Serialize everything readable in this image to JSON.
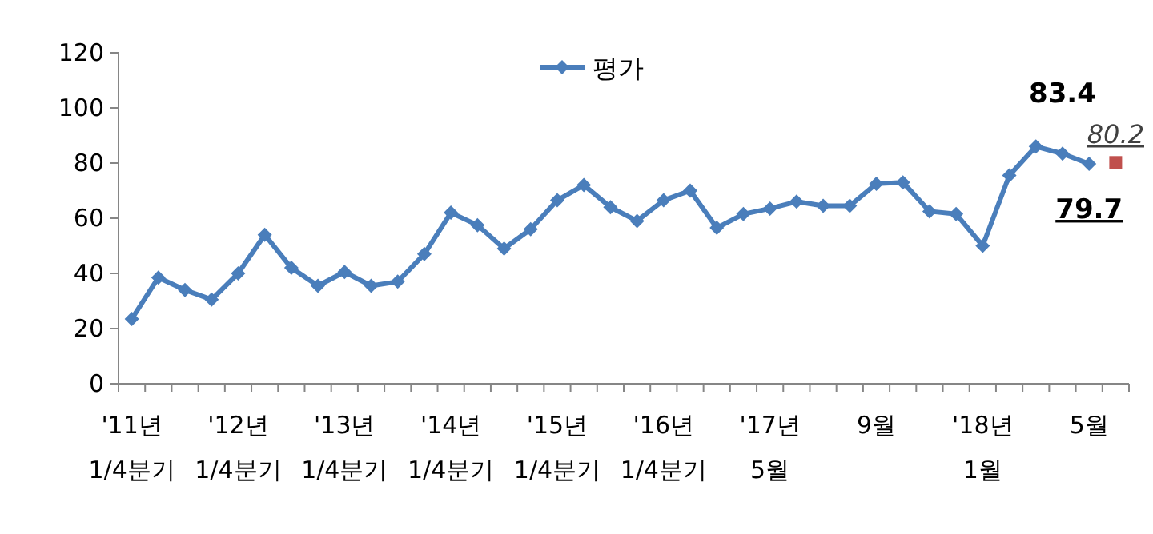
{
  "chart_data": {
    "type": "line",
    "categories": [
      "'11년\n1/4분기",
      null,
      null,
      null,
      "'12년\n1/4분기",
      null,
      null,
      null,
      "'13년\n1/4분기",
      null,
      null,
      null,
      "'14년\n1/4분기",
      null,
      null,
      null,
      "'15년\n1/4분기",
      null,
      null,
      null,
      "'16년\n1/4분기",
      null,
      null,
      null,
      "'17년\n5월",
      null,
      null,
      null,
      "9월",
      null,
      null,
      null,
      "'18년\n1월",
      null,
      null,
      null,
      "5월",
      null
    ],
    "series": [
      {
        "name": "평가",
        "color": "#4a7ebb",
        "marker": "diamond",
        "values": [
          23.5,
          38.5,
          34,
          30.5,
          40,
          54,
          42,
          35.5,
          40.5,
          35.5,
          37,
          47,
          62,
          57.5,
          49,
          56,
          66.5,
          72,
          64,
          59,
          66.5,
          70,
          56.5,
          61.5,
          63.5,
          66,
          64.5,
          64.5,
          72.5,
          73,
          62.5,
          61.5,
          50,
          75.5,
          86,
          83.4,
          79.7,
          null
        ],
        "value_labels": [
          null,
          null,
          null,
          null,
          null,
          null,
          null,
          null,
          null,
          null,
          null,
          null,
          null,
          null,
          null,
          null,
          null,
          null,
          null,
          null,
          null,
          null,
          null,
          null,
          null,
          null,
          null,
          null,
          null,
          null,
          null,
          null,
          null,
          null,
          null,
          "83.4",
          "79.7",
          null
        ]
      },
      {
        "type": "scatter",
        "color": "#c0504d",
        "marker": "square",
        "values": [
          null,
          null,
          null,
          null,
          null,
          null,
          null,
          null,
          null,
          null,
          null,
          null,
          null,
          null,
          null,
          null,
          null,
          null,
          null,
          null,
          null,
          null,
          null,
          null,
          null,
          null,
          null,
          null,
          null,
          null,
          null,
          null,
          null,
          null,
          null,
          null,
          null,
          80.2
        ],
        "value_labels": [
          null,
          null,
          null,
          null,
          null,
          null,
          null,
          null,
          null,
          null,
          null,
          null,
          null,
          null,
          null,
          null,
          null,
          null,
          null,
          null,
          null,
          null,
          null,
          null,
          null,
          null,
          null,
          null,
          null,
          null,
          null,
          null,
          null,
          null,
          null,
          null,
          null,
          "80.2"
        ]
      }
    ],
    "ylim": [
      0,
      120
    ],
    "yticks": [
      0,
      20,
      40,
      60,
      80,
      100,
      120
    ],
    "grid": false,
    "legend": "top"
  }
}
